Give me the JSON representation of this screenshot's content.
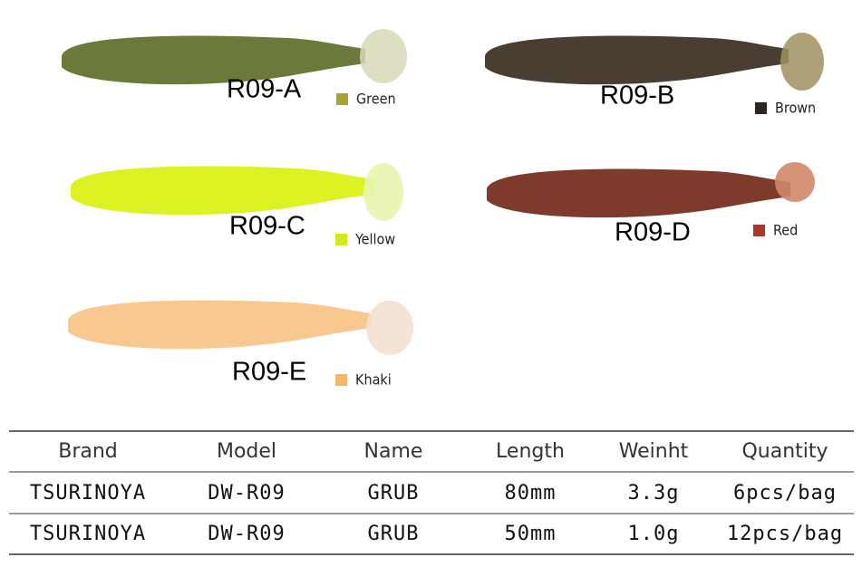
{
  "products": [
    {
      "code": "R09-A",
      "color_name": "Green",
      "swatch": "#a8a430"
    },
    {
      "code": "R09-B",
      "color_name": "Brown",
      "swatch": "#2a2622"
    },
    {
      "code": "R09-C",
      "color_name": "Yellow",
      "swatch": "#d4e81c"
    },
    {
      "code": "R09-D",
      "color_name": "Red",
      "swatch": "#a8382a"
    },
    {
      "code": "R09-E",
      "color_name": "Khaki",
      "swatch": "#f4b860"
    }
  ],
  "table": {
    "header": [
      "Brand",
      "Model",
      "Name",
      "Length",
      "Weinht",
      "Quantity"
    ],
    "rows": [
      [
        "TSURINOYA",
        "DW-R09",
        "GRUB",
        "80mm",
        "3.3g",
        "6pcs/bag"
      ],
      [
        "TSURINOYA",
        "DW-R09",
        "GRUB",
        "50mm",
        "1.0g",
        "12pcs/bag"
      ]
    ]
  }
}
